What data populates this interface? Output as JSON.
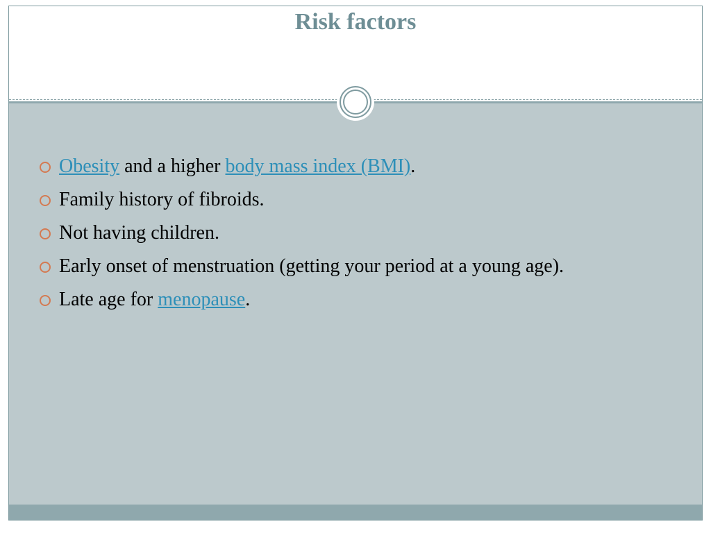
{
  "slide": {
    "title": "Risk factors",
    "colors": {
      "title_color": "#6e8e95",
      "border_color": "#7f9ba0",
      "content_bg": "#bcc9cc",
      "footer_bg": "#8fa8ad",
      "bullet_color": "#d47a52",
      "link_color": "#2d8fb8",
      "text_color": "#000000",
      "page_bg": "#ffffff"
    },
    "typography": {
      "title_fontsize": 34,
      "body_fontsize": 28,
      "font_family": "Georgia, serif"
    },
    "bullets": [
      {
        "segments": [
          {
            "text": "Obesity",
            "link": true
          },
          {
            "text": " and a higher ",
            "link": false
          },
          {
            "text": "body mass index (BMI)",
            "link": true
          },
          {
            "text": ".",
            "link": false
          }
        ]
      },
      {
        "segments": [
          {
            "text": "Family history of fibroids.",
            "link": false
          }
        ]
      },
      {
        "segments": [
          {
            "text": "Not having children.",
            "link": false
          }
        ]
      },
      {
        "segments": [
          {
            "text": "Early onset of menstruation (getting your period at a young age).",
            "link": false
          }
        ]
      },
      {
        "segments": [
          {
            "text": "Late age for ",
            "link": false
          },
          {
            "text": "menopause",
            "link": true
          },
          {
            "text": ".",
            "link": false
          }
        ]
      }
    ]
  }
}
